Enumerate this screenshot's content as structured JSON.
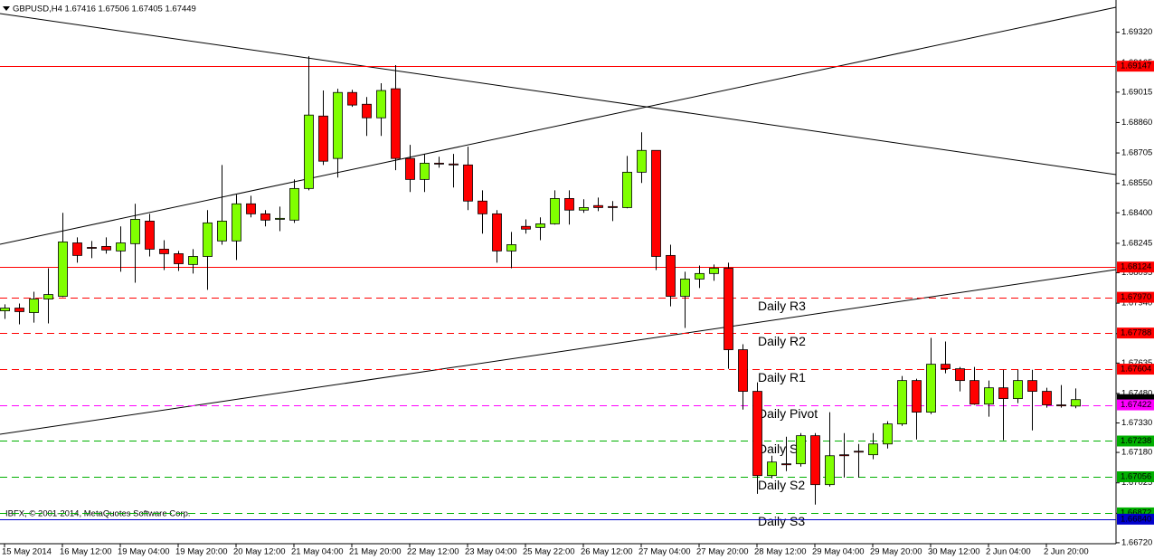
{
  "chart_data": {
    "type": "candlestick",
    "title": "GBPUSD,H4  1.67416 1.67506 1.67405 1.67449",
    "copyright": "IBFX, © 2001-2014, MetaQuotes Software Corp.",
    "categories": [
      "15 May 2014",
      null,
      null,
      null,
      "16 May 12:00",
      null,
      null,
      null,
      "19 May 04:00",
      null,
      null,
      null,
      "19 May 20:00",
      null,
      null,
      null,
      "20 May 12:00",
      null,
      null,
      null,
      "21 May 04:00",
      null,
      null,
      null,
      "21 May 20:00",
      null,
      null,
      null,
      "22 May 12:00",
      null,
      null,
      null,
      "23 May 04:00",
      null,
      null,
      null,
      "25 May 22:00",
      null,
      null,
      null,
      "26 May 12:00",
      null,
      null,
      null,
      "27 May 04:00",
      null,
      null,
      null,
      "27 May 20:00",
      null,
      null,
      null,
      "28 May 12:00",
      null,
      null,
      null,
      "29 May 04:00",
      null,
      null,
      null,
      "29 May 20:00",
      null,
      null,
      null,
      "30 May 12:00",
      null,
      null,
      null,
      "2 Jun 04:00",
      null,
      null,
      null,
      "2 Jun 20:00",
      null,
      null
    ],
    "open": [
      1.67901,
      1.67915,
      1.67892,
      1.67961,
      1.67975,
      1.68247,
      1.68224,
      1.68229,
      1.68206,
      1.68243,
      1.68358,
      1.68215,
      1.68192,
      1.68137,
      1.68178,
      1.68257,
      1.68257,
      1.68446,
      1.68395,
      1.68367,
      1.68363,
      1.68524,
      1.68893,
      1.68677,
      1.69013,
      1.68953,
      1.68884,
      1.69032,
      1.68677,
      1.6857,
      1.68653,
      1.68649,
      1.68644,
      1.6846,
      1.68395,
      1.68206,
      1.68331,
      1.68326,
      1.68344,
      1.68473,
      1.68414,
      1.68437,
      1.68432,
      1.68427,
      1.68607,
      1.68718,
      1.68183,
      1.67975,
      1.68063,
      1.68091,
      1.68118,
      1.67703,
      1.67491,
      1.67062,
      1.67122,
      1.67122,
      1.67265,
      1.67016,
      1.67168,
      1.67186,
      1.67168,
      1.67223,
      1.67325,
      1.67546,
      1.67385,
      1.67629,
      1.67606,
      1.67546,
      1.67426,
      1.67509,
      1.67454,
      1.67546,
      1.67491,
      1.67422,
      1.67416
    ],
    "high": [
      1.67934,
      1.67938,
      1.67998,
      1.68118,
      1.684,
      1.68275,
      1.68257,
      1.68275,
      1.68331,
      1.68446,
      1.68395,
      1.68261,
      1.68206,
      1.68215,
      1.68414,
      1.68644,
      1.68492,
      1.68487,
      1.68414,
      1.68432,
      1.6857,
      1.69198,
      1.69023,
      1.69032,
      1.69027,
      1.6899,
      1.6906,
      1.69152,
      1.68746,
      1.687,
      1.68686,
      1.687,
      1.68737,
      1.68515,
      1.68414,
      1.68303,
      1.68367,
      1.68377,
      1.68515,
      1.68515,
      1.68469,
      1.68478,
      1.6846,
      1.6869,
      1.6881,
      1.68718,
      1.68238,
      1.681,
      1.68132,
      1.68137,
      1.68146,
      1.67731,
      1.67537,
      1.67163,
      1.6726,
      1.67278,
      1.67278,
      1.67385,
      1.67278,
      1.67223,
      1.67278,
      1.67339,
      1.67569,
      1.67555,
      1.67763,
      1.67745,
      1.67615,
      1.67615,
      1.67546,
      1.67601,
      1.67601,
      1.67601,
      1.67509,
      1.67523,
      1.67506
    ],
    "low": [
      1.6786,
      1.67832,
      1.67841,
      1.67837,
      1.67971,
      1.68146,
      1.68169,
      1.68192,
      1.681,
      1.68044,
      1.68178,
      1.68109,
      1.68104,
      1.68091,
      1.68008,
      1.68238,
      1.6816,
      1.68377,
      1.68331,
      1.68307,
      1.68349,
      1.68515,
      1.68644,
      1.6858,
      1.6894,
      1.68792,
      1.68792,
      1.68617,
      1.68506,
      1.68506,
      1.6863,
      1.68529,
      1.68414,
      1.68294,
      1.68146,
      1.68118,
      1.68294,
      1.68261,
      1.6834,
      1.6834,
      1.684,
      1.68409,
      1.68358,
      1.68423,
      1.68552,
      1.68109,
      1.67924,
      1.67814,
      1.68017,
      1.68054,
      1.67606,
      1.67398,
      1.66969,
      1.67048,
      1.67085,
      1.67108,
      1.66914,
      1.67006,
      1.67052,
      1.67052,
      1.67145,
      1.672,
      1.67315,
      1.67246,
      1.67375,
      1.67583,
      1.67491,
      1.67422,
      1.67362,
      1.67242,
      1.67431,
      1.67292,
      1.67408,
      1.67408,
      1.67405
    ],
    "close": [
      1.67915,
      1.67897,
      1.67961,
      1.67984,
      1.68252,
      1.68183,
      1.6822,
      1.68211,
      1.68247,
      1.68367,
      1.68215,
      1.68192,
      1.68141,
      1.68178,
      1.68349,
      1.68358,
      1.68446,
      1.68395,
      1.68363,
      1.68372,
      1.68524,
      1.68898,
      1.68663,
      1.69013,
      1.68949,
      1.68884,
      1.69023,
      1.68677,
      1.6857,
      1.68653,
      1.68649,
      1.68644,
      1.6846,
      1.68395,
      1.68206,
      1.68238,
      1.68317,
      1.68344,
      1.68473,
      1.68414,
      1.68427,
      1.68427,
      1.68427,
      1.68607,
      1.68718,
      1.68178,
      1.67975,
      1.68063,
      1.68091,
      1.68118,
      1.67703,
      1.67491,
      1.67062,
      1.67131,
      1.67117,
      1.67265,
      1.67016,
      1.67163,
      1.67163,
      1.67182,
      1.67223,
      1.67325,
      1.67546,
      1.67385,
      1.67629,
      1.67606,
      1.67546,
      1.67426,
      1.67509,
      1.67454,
      1.67546,
      1.67491,
      1.67422,
      1.67417,
      1.67449
    ],
    "up_color": "#80ff00",
    "down_color": "#ff0000",
    "ylim": [
      1.66715,
      1.69484
    ],
    "yticks": [
      {
        "value": 1.6932,
        "label": "1.69320"
      },
      1.69165,
      1.69015,
      {
        "value": 1.6886,
        "label": "1.68860"
      },
      1.68705,
      {
        "value": 1.6855,
        "label": "1.68550"
      },
      {
        "value": 1.684,
        "label": "1.68400"
      },
      1.68245,
      1.68095,
      {
        "value": 1.6794,
        "label": "1.67940"
      },
      1.67785,
      1.67635,
      {
        "value": 1.6748,
        "label": "1.67480"
      },
      {
        "value": 1.6733,
        "label": "1.67330"
      },
      {
        "value": 1.6718,
        "label": "1.67180"
      },
      1.67025,
      {
        "value": 1.6687,
        "label": "1.66870"
      },
      {
        "value": 1.6672,
        "label": "1.66720"
      }
    ],
    "grid": false,
    "levels": [
      {
        "value": 1.69147,
        "color": "#ff0000",
        "dashed": false
      },
      {
        "value": 1.68124,
        "color": "#ff0000",
        "dashed": false
      },
      {
        "value": 1.6797,
        "label": "1.67970",
        "name": "Daily R3",
        "color": "#ff0000",
        "text_color": "#d03030",
        "dashed": true
      },
      {
        "value": 1.67788,
        "name": "Daily R2",
        "color": "#ff0000",
        "text_color": "#d03030",
        "dashed": true
      },
      {
        "value": 1.67604,
        "name": "Daily R1",
        "color": "#ff0000",
        "text_color": "#d03030",
        "dashed": true
      },
      {
        "value": 1.67422,
        "name": "Daily Pivot",
        "color": "#ff00ff",
        "text_color": "#e020e0",
        "dashed": true
      },
      {
        "value": 1.67238,
        "name": "Daily S1",
        "color": "#00b000",
        "text_color": "#1a2a80",
        "dashed": true
      },
      {
        "value": 1.67056,
        "name": "Daily S2",
        "color": "#00b000",
        "text_color": "#1a2a80",
        "dashed": true
      },
      {
        "value": 1.66872,
        "name": "Daily S3",
        "color": "#00b000",
        "text_color": "#1a2a80",
        "dashed": true
      },
      {
        "value": 1.6684,
        "label": "1.66840",
        "color": "#0000cc",
        "dashed": false
      }
    ]
  }
}
